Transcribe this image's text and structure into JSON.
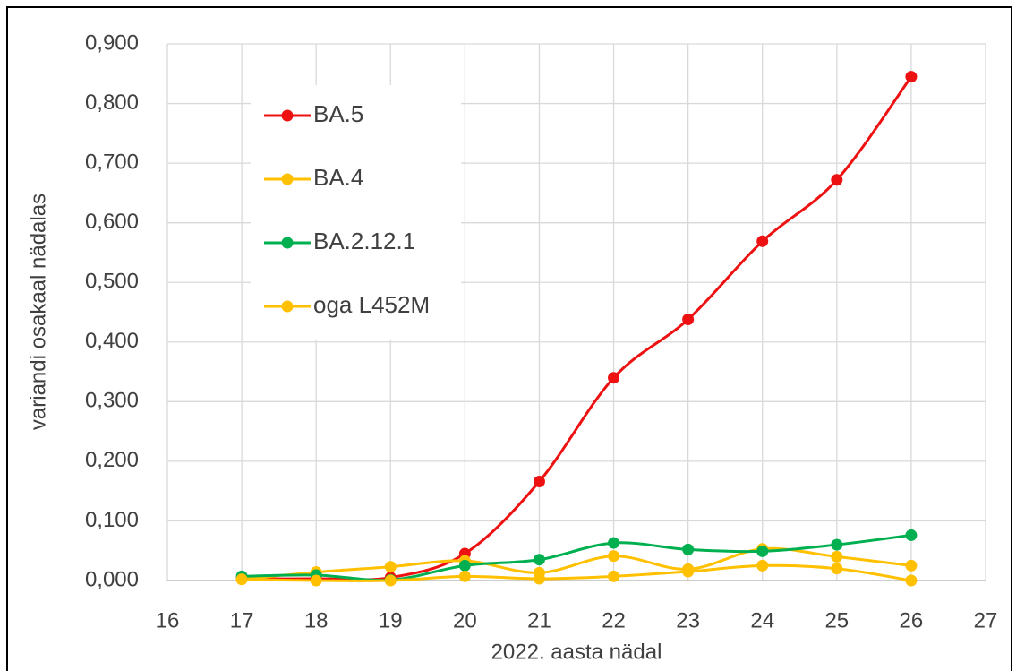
{
  "chart_data": {
    "type": "line",
    "x_label": "2022. aasta nädal",
    "y_label": "variandi osakaal nädalas",
    "x": [
      17,
      18,
      19,
      20,
      21,
      22,
      23,
      24,
      25,
      26
    ],
    "series": [
      {
        "name": "BA.5",
        "color": "#ee1111",
        "values": [
          0.003,
          0.003,
          0.005,
          0.045,
          0.166,
          0.34,
          0.438,
          0.569,
          0.672,
          0.845
        ]
      },
      {
        "name": "BA.4",
        "color": "#ffc000",
        "values": [
          0.002,
          0.014,
          0.023,
          0.033,
          0.013,
          0.041,
          0.019,
          0.053,
          0.04,
          0.025
        ]
      },
      {
        "name": "BA.2.12.1",
        "color": "#00b050",
        "values": [
          0.007,
          0.009,
          0.001,
          0.025,
          0.035,
          0.063,
          0.052,
          0.049,
          0.06,
          0.076
        ]
      },
      {
        "name": "oga L452M",
        "color": "#ffc000",
        "values": [
          0.002,
          0.0,
          0.0,
          0.007,
          0.003,
          0.007,
          0.015,
          0.025,
          0.02,
          0.0
        ]
      }
    ],
    "xlim": [
      16,
      27
    ],
    "xticks": [
      16,
      17,
      18,
      19,
      20,
      21,
      22,
      23,
      24,
      25,
      26,
      27
    ],
    "ylim": [
      0,
      0.9
    ],
    "yticks": [
      {
        "value": 0,
        "label": "0,000"
      },
      {
        "value": 0.1,
        "label": "0,100"
      },
      {
        "value": 0.2,
        "label": "0,200"
      },
      {
        "value": 0.3,
        "label": "0,300"
      },
      {
        "value": 0.4,
        "label": "0,400"
      },
      {
        "value": 0.5,
        "label": "0,500"
      },
      {
        "value": 0.6,
        "label": "0,600"
      },
      {
        "value": 0.7,
        "label": "0,700"
      },
      {
        "value": 0.8,
        "label": "0,800"
      },
      {
        "value": 0.9,
        "label": "0,900"
      }
    ],
    "grid": true,
    "legend": "upper left"
  }
}
